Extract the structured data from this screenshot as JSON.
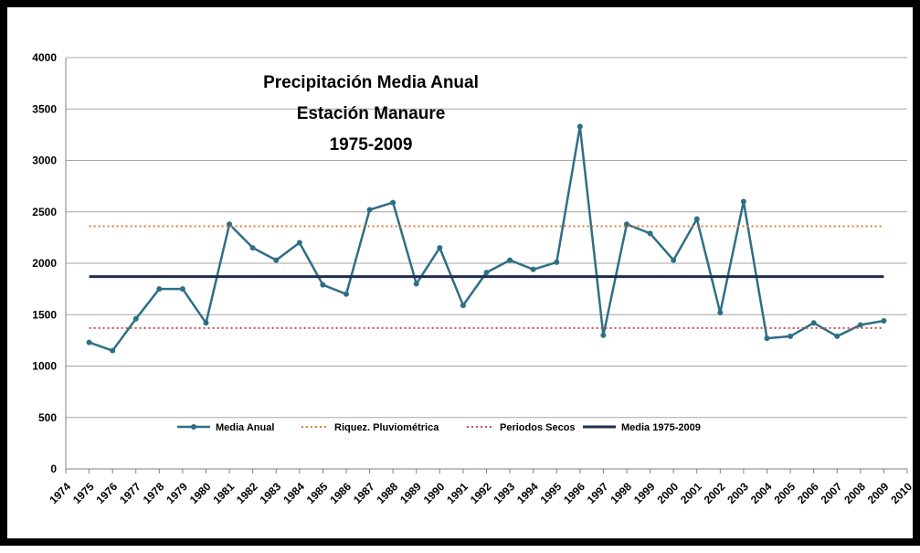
{
  "chart_data": {
    "type": "line",
    "title_lines": [
      "Precipitación Media Anual",
      "Estación Manaure",
      "1975-2009"
    ],
    "xlabel": "",
    "ylabel": "",
    "xlim": [
      1974,
      2010
    ],
    "ylim": [
      0,
      4000
    ],
    "x_ticks": [
      1974,
      1975,
      1976,
      1977,
      1978,
      1979,
      1980,
      1981,
      1982,
      1983,
      1984,
      1985,
      1986,
      1987,
      1988,
      1989,
      1990,
      1991,
      1992,
      1993,
      1994,
      1995,
      1996,
      1997,
      1998,
      1999,
      2000,
      2001,
      2002,
      2003,
      2004,
      2005,
      2006,
      2007,
      2008,
      2009,
      2010
    ],
    "y_ticks": [
      0,
      500,
      1000,
      1500,
      2000,
      2500,
      3000,
      3500,
      4000
    ],
    "grid": true,
    "legend_position": "bottom",
    "series": [
      {
        "name": "Media Anual",
        "color": "#2e6f86",
        "style": "solid-markers",
        "x": [
          1975,
          1976,
          1977,
          1978,
          1979,
          1980,
          1981,
          1982,
          1983,
          1984,
          1985,
          1986,
          1987,
          1988,
          1989,
          1990,
          1991,
          1992,
          1993,
          1994,
          1995,
          1996,
          1997,
          1998,
          1999,
          2000,
          2001,
          2002,
          2003,
          2004,
          2005,
          2006,
          2007,
          2008,
          2009
        ],
        "values": [
          1230,
          1150,
          1460,
          1750,
          1750,
          1420,
          2380,
          2150,
          2030,
          2200,
          1790,
          1700,
          2520,
          2590,
          1800,
          2150,
          1590,
          1910,
          2030,
          1940,
          2010,
          3330,
          1300,
          2380,
          2290,
          2030,
          2430,
          1520,
          2600,
          1270,
          1290,
          1420,
          1290,
          1400,
          1440
        ]
      },
      {
        "name": "Riquez. Pluviométrica",
        "color": "#e07b39",
        "style": "dotted",
        "x": [
          1975,
          2009
        ],
        "values": [
          2360,
          2360
        ]
      },
      {
        "name": "Periodos Secos",
        "color": "#c0504d",
        "style": "dotted",
        "x": [
          1975,
          2009
        ],
        "values": [
          1370,
          1370
        ]
      },
      {
        "name": "Media 1975-2009",
        "color": "#1f2d4d",
        "style": "solid-thick",
        "x": [
          1975,
          2009
        ],
        "values": [
          1870,
          1870
        ]
      }
    ]
  }
}
